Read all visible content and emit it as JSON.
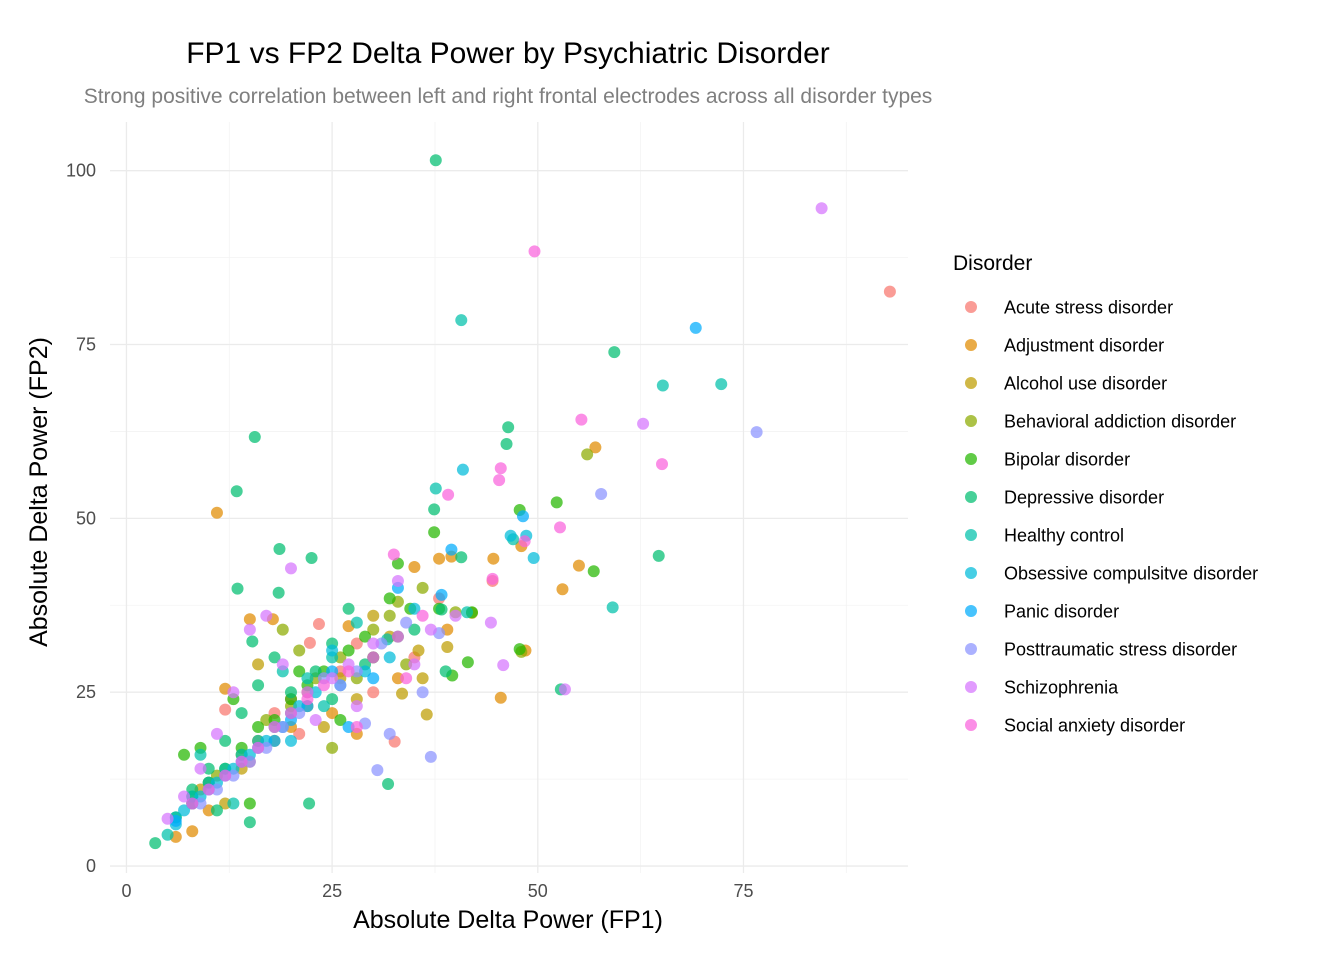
{
  "chart_data": {
    "type": "scatter",
    "title": "FP1 vs FP2 Delta Power by Psychiatric Disorder",
    "subtitle": "Strong positive correlation between left and right frontal electrodes across all disorder types",
    "xlabel": "Absolute Delta Power (FP1)",
    "ylabel": "Absolute Delta Power (FP2)",
    "xlim": [
      -2,
      95
    ],
    "ylim": [
      -1,
      107
    ],
    "xticks": [
      0,
      25,
      50,
      75
    ],
    "yticks": [
      0,
      25,
      50,
      75,
      100
    ],
    "grid": true,
    "legend": {
      "title": "Disorder",
      "position": "right"
    },
    "series": [
      {
        "name": "Acute stress disorder",
        "color": "#F8766D",
        "points": [
          [
            92.8,
            82.6
          ],
          [
            23.4,
            34.8
          ],
          [
            22.3,
            32.1
          ],
          [
            32.6,
            17.9
          ],
          [
            38,
            38.5
          ],
          [
            44.5,
            41
          ],
          [
            12,
            22.5
          ],
          [
            18,
            22
          ],
          [
            26,
            28
          ],
          [
            30,
            25
          ],
          [
            28,
            32
          ],
          [
            15,
            15
          ],
          [
            10,
            12
          ],
          [
            8,
            9
          ],
          [
            21,
            19
          ],
          [
            35,
            30
          ],
          [
            20,
            24
          ]
        ]
      },
      {
        "name": "Adjustment disorder",
        "color": "#E18A00",
        "points": [
          [
            11,
            50.8
          ],
          [
            57,
            60.2
          ],
          [
            48,
            46
          ],
          [
            48.5,
            31
          ],
          [
            53,
            39.8
          ],
          [
            55,
            43.2
          ],
          [
            38,
            44.2
          ],
          [
            39.5,
            44.5
          ],
          [
            45.5,
            24.2
          ],
          [
            35,
            43
          ],
          [
            44.6,
            44.2
          ],
          [
            12,
            25.5
          ],
          [
            15,
            35.5
          ],
          [
            17.8,
            35.5
          ],
          [
            27,
            34.5
          ],
          [
            39,
            34
          ],
          [
            25,
            22
          ],
          [
            20,
            20
          ],
          [
            10,
            8
          ],
          [
            8,
            5
          ],
          [
            6,
            4.2
          ],
          [
            16,
            18
          ],
          [
            22,
            25
          ],
          [
            28,
            19
          ],
          [
            33,
            27
          ]
        ]
      },
      {
        "name": "Alcohol use disorder",
        "color": "#BE9C00",
        "points": [
          [
            32,
            33
          ],
          [
            35.5,
            31
          ],
          [
            39,
            31.5
          ],
          [
            36,
            27
          ],
          [
            33.5,
            24.8
          ],
          [
            36.5,
            21.8
          ],
          [
            42,
            36.4
          ],
          [
            30,
            30
          ],
          [
            26,
            27
          ],
          [
            22,
            23
          ],
          [
            18,
            18
          ],
          [
            14,
            14
          ],
          [
            9,
            11
          ],
          [
            16,
            29
          ],
          [
            30,
            36
          ],
          [
            28,
            24
          ],
          [
            24,
            20
          ],
          [
            12,
            9
          ]
        ]
      },
      {
        "name": "Behavioral addiction disorder",
        "color": "#8CAB00",
        "points": [
          [
            56,
            59.2
          ],
          [
            48,
            30.8
          ],
          [
            32,
            36
          ],
          [
            33,
            38
          ],
          [
            36,
            40
          ],
          [
            30,
            34
          ],
          [
            26,
            30
          ],
          [
            23,
            27
          ],
          [
            20,
            23
          ],
          [
            19,
            34
          ],
          [
            21,
            31
          ],
          [
            17,
            21
          ],
          [
            14,
            16
          ],
          [
            11,
            13
          ],
          [
            8,
            9
          ],
          [
            28,
            27
          ],
          [
            34,
            29
          ],
          [
            40,
            36.5
          ],
          [
            25,
            17
          ]
        ]
      },
      {
        "name": "Bipolar disorder",
        "color": "#24B700",
        "points": [
          [
            47.8,
            51.2
          ],
          [
            47.8,
            31.2
          ],
          [
            52.3,
            52.3
          ],
          [
            56.8,
            42.4
          ],
          [
            37.4,
            48
          ],
          [
            38,
            37
          ],
          [
            42,
            36.5
          ],
          [
            41.5,
            29.3
          ],
          [
            39.6,
            27.4
          ],
          [
            33,
            43.5
          ],
          [
            32,
            38.5
          ],
          [
            34.5,
            37
          ],
          [
            29,
            33
          ],
          [
            27,
            31
          ],
          [
            24,
            28
          ],
          [
            22,
            26
          ],
          [
            20,
            24
          ],
          [
            18,
            21
          ],
          [
            16,
            20
          ],
          [
            14,
            17
          ],
          [
            12,
            14
          ],
          [
            10,
            12
          ],
          [
            8,
            10
          ],
          [
            7,
            16
          ],
          [
            9,
            17
          ],
          [
            21,
            28
          ],
          [
            26,
            21
          ],
          [
            13,
            24
          ],
          [
            15,
            9
          ]
        ]
      },
      {
        "name": "Depressive disorder",
        "color": "#00BE70",
        "points": [
          [
            37.6,
            101.5
          ],
          [
            59.3,
            73.9
          ],
          [
            46.4,
            63.1
          ],
          [
            46.2,
            60.7
          ],
          [
            15.6,
            61.7
          ],
          [
            13.4,
            53.9
          ],
          [
            37.4,
            51.3
          ],
          [
            38.3,
            36.9
          ],
          [
            40.7,
            44.4
          ],
          [
            64.7,
            44.6
          ],
          [
            52.8,
            25.4
          ],
          [
            18.6,
            45.6
          ],
          [
            22.5,
            44.3
          ],
          [
            13.5,
            39.9
          ],
          [
            15.3,
            32.3
          ],
          [
            31.8,
            11.8
          ],
          [
            22.2,
            9
          ],
          [
            38.8,
            28
          ],
          [
            35,
            34
          ],
          [
            30,
            30
          ],
          [
            27,
            37
          ],
          [
            25,
            32
          ],
          [
            23,
            28
          ],
          [
            20,
            25
          ],
          [
            18.5,
            39.3
          ],
          [
            18,
            30
          ],
          [
            16,
            26
          ],
          [
            14,
            22
          ],
          [
            12,
            18
          ],
          [
            10,
            14
          ],
          [
            8,
            11
          ],
          [
            6,
            7
          ],
          [
            3.5,
            3.3
          ],
          [
            15,
            6.3
          ],
          [
            29,
            29
          ],
          [
            33,
            33
          ],
          [
            25,
            24
          ],
          [
            11,
            8
          ]
        ]
      },
      {
        "name": "Healthy control",
        "color": "#00C1AB",
        "points": [
          [
            40.7,
            78.5
          ],
          [
            65.2,
            69.1
          ],
          [
            72.3,
            69.3
          ],
          [
            37.6,
            54.3
          ],
          [
            47,
            47
          ],
          [
            59.1,
            37.2
          ],
          [
            41.4,
            36.5
          ],
          [
            31.7,
            32.6
          ],
          [
            28,
            35
          ],
          [
            25,
            30
          ],
          [
            22,
            27
          ],
          [
            20,
            22
          ],
          [
            18,
            20
          ],
          [
            16,
            18
          ],
          [
            14,
            16
          ],
          [
            12,
            14
          ],
          [
            10,
            12
          ],
          [
            8,
            10
          ],
          [
            6,
            7
          ],
          [
            5,
            4.5
          ],
          [
            24,
            23
          ],
          [
            19,
            28
          ],
          [
            13,
            9
          ],
          [
            9,
            16
          ]
        ]
      },
      {
        "name": "Obsessive compulsitve disorder",
        "color": "#00BBDA",
        "points": [
          [
            40.9,
            57
          ],
          [
            48.6,
            47.5
          ],
          [
            49.5,
            44.3
          ],
          [
            46.7,
            47.5
          ],
          [
            35,
            37
          ],
          [
            32,
            30
          ],
          [
            29,
            28
          ],
          [
            26,
            26
          ],
          [
            23,
            25
          ],
          [
            21,
            23
          ],
          [
            19,
            20
          ],
          [
            17,
            18
          ],
          [
            15,
            16
          ],
          [
            13,
            14
          ],
          [
            11,
            12
          ],
          [
            9,
            10
          ],
          [
            7,
            8
          ],
          [
            6,
            6
          ],
          [
            20,
            18
          ],
          [
            25,
            31
          ]
        ]
      },
      {
        "name": "Panic disorder",
        "color": "#00ACFC",
        "points": [
          [
            69.2,
            77.4
          ],
          [
            48.2,
            50.3
          ],
          [
            39.5,
            45.5
          ],
          [
            38.3,
            39
          ],
          [
            33,
            40
          ],
          [
            27,
            20
          ],
          [
            30,
            27
          ],
          [
            25,
            28
          ],
          [
            22,
            23
          ],
          [
            20,
            21
          ],
          [
            18,
            18
          ],
          [
            16,
            17
          ],
          [
            14,
            15
          ],
          [
            12,
            13
          ],
          [
            10,
            11
          ],
          [
            8,
            9
          ],
          [
            6,
            6.5
          ]
        ]
      },
      {
        "name": "Posttraumatic stress disorder",
        "color": "#8B93FF",
        "points": [
          [
            76.6,
            62.4
          ],
          [
            57.7,
            53.5
          ],
          [
            37,
            15.7
          ],
          [
            38,
            33.5
          ],
          [
            34,
            35
          ],
          [
            31,
            32
          ],
          [
            28,
            28
          ],
          [
            26,
            26
          ],
          [
            24,
            27
          ],
          [
            21,
            22
          ],
          [
            19,
            20
          ],
          [
            17,
            17
          ],
          [
            15,
            15
          ],
          [
            13,
            13
          ],
          [
            11,
            11
          ],
          [
            9,
            9
          ],
          [
            30.5,
            13.8
          ],
          [
            29,
            20.5
          ],
          [
            32,
            19
          ],
          [
            36,
            25
          ]
        ]
      },
      {
        "name": "Schizophrenia",
        "color": "#D575FE",
        "points": [
          [
            84.5,
            94.6
          ],
          [
            62.8,
            63.6
          ],
          [
            44.3,
            35
          ],
          [
            53.3,
            25.4
          ],
          [
            45.8,
            28.9
          ],
          [
            40,
            36
          ],
          [
            37,
            34
          ],
          [
            33,
            41
          ],
          [
            30,
            32
          ],
          [
            27,
            29
          ],
          [
            25,
            27
          ],
          [
            22,
            25
          ],
          [
            20,
            42.8
          ],
          [
            19,
            29
          ],
          [
            17,
            36
          ],
          [
            15,
            34
          ],
          [
            13,
            25
          ],
          [
            11,
            19
          ],
          [
            9,
            14
          ],
          [
            7,
            10
          ],
          [
            5,
            6.8
          ],
          [
            23,
            21
          ],
          [
            28,
            23
          ],
          [
            35,
            29
          ]
        ]
      },
      {
        "name": "Social anxiety disorder",
        "color": "#F962DD",
        "points": [
          [
            49.6,
            88.4
          ],
          [
            55.3,
            64.2
          ],
          [
            65.1,
            57.8
          ],
          [
            45.5,
            57.2
          ],
          [
            45.3,
            55.5
          ],
          [
            52.7,
            48.7
          ],
          [
            48.4,
            46.7
          ],
          [
            32.5,
            44.8
          ],
          [
            39.1,
            53.4
          ],
          [
            44.5,
            41.3
          ],
          [
            36,
            36
          ],
          [
            33,
            33
          ],
          [
            30,
            30
          ],
          [
            27,
            28
          ],
          [
            24,
            26
          ],
          [
            22,
            24
          ],
          [
            20,
            22
          ],
          [
            18,
            20
          ],
          [
            16,
            17
          ],
          [
            14,
            15
          ],
          [
            12,
            13
          ],
          [
            10,
            11
          ],
          [
            8,
            9
          ],
          [
            28,
            20
          ],
          [
            34,
            27
          ]
        ]
      }
    ]
  }
}
